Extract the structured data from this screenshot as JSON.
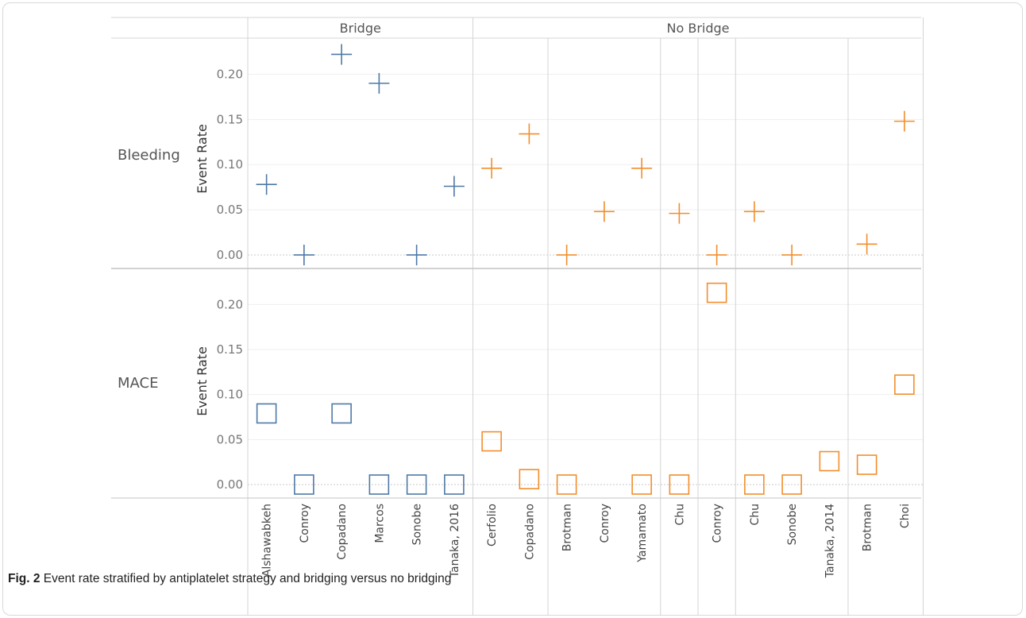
{
  "chart_data": {
    "type": "scatter",
    "column_groups": [
      {
        "label": "Bridge",
        "color": "#4e79a7"
      },
      {
        "label": "No Bridge",
        "color": "#f28e2b"
      }
    ],
    "row_panels": [
      {
        "label": "Bleeding",
        "ylabel": "Event Rate",
        "marker": "plus"
      },
      {
        "label": "MACE",
        "ylabel": "Event Rate",
        "marker": "square"
      }
    ],
    "y_ticks": [
      "0.00",
      "0.05",
      "0.10",
      "0.15",
      "0.20"
    ],
    "ylim": [
      -0.015,
      0.24
    ],
    "categories": [
      "Alshawabkeh",
      "Conroy",
      "Copadano",
      "Marcos",
      "Sonobe",
      "Tanaka, 2016",
      "Cerfolio",
      "Copadano",
      "Brotman",
      "Conroy",
      "Yamamato",
      "Chu",
      "Conroy",
      "Chu",
      "Sonobe",
      "Tanaka, 2014",
      "Brotman",
      "Choi"
    ],
    "category_group": [
      "Bridge",
      "Bridge",
      "Bridge",
      "Bridge",
      "Bridge",
      "Bridge",
      "No Bridge",
      "No Bridge",
      "No Bridge",
      "No Bridge",
      "No Bridge",
      "No Bridge",
      "No Bridge",
      "No Bridge",
      "No Bridge",
      "No Bridge",
      "No Bridge",
      "No Bridge"
    ],
    "subpanel_sizes": [
      6,
      2,
      3,
      1,
      1,
      3,
      2
    ],
    "series": [
      {
        "panel": "Bleeding",
        "values": [
          0.078,
          0.0,
          0.222,
          0.19,
          0.0,
          0.076,
          0.096,
          0.134,
          0.0,
          0.048,
          0.096,
          0.046,
          0.0,
          0.048,
          0.0,
          null,
          0.012,
          0.148
        ]
      },
      {
        "panel": "MACE",
        "values": [
          0.079,
          0.0,
          0.079,
          0.0,
          0.0,
          0.0,
          0.048,
          0.006,
          0.0,
          null,
          0.0,
          0.0,
          0.213,
          0.0,
          0.0,
          0.026,
          0.022,
          0.111
        ]
      }
    ],
    "grid": true
  },
  "caption": {
    "fig_label": "Fig. 2",
    "text": " Event rate stratified by antiplatelet strategy and bridging versus no bridging"
  }
}
